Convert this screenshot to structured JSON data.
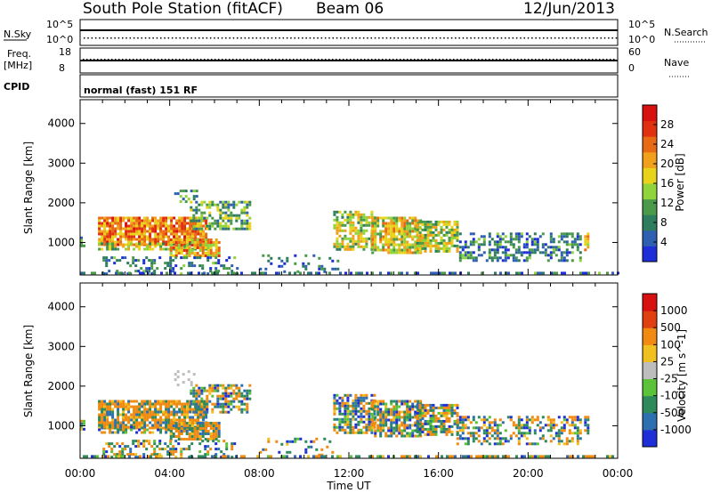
{
  "header": {
    "title": "South Pole Station (fitACF)",
    "beam": "Beam 06",
    "date": "12/Jun/2013"
  },
  "panels": {
    "nsky_label": "N.Sky",
    "nsearch_label": "N.Search",
    "nsky_ticks": [
      "10^5",
      "10^0"
    ],
    "nsearch_ticks": [
      "10^5",
      "10^0"
    ],
    "freq_label_1": "Freq.",
    "freq_label_2": "[MHz]",
    "freq_ticks": [
      "18",
      "8"
    ],
    "nave_label": "Nave",
    "nave_ticks": [
      "60",
      "0"
    ],
    "cpid_label": "CPID",
    "cpid_value": "normal (fast) 151 RF"
  },
  "chart_data": [
    {
      "type": "heatmap",
      "name": "power",
      "ylabel": "Slant Range [km]",
      "xlabel": "",
      "x_ticks": [
        "00:00",
        "04:00",
        "08:00",
        "12:00",
        "16:00",
        "20:00",
        "00:00"
      ],
      "y_ticks": [
        1000,
        2000,
        3000,
        4000
      ],
      "ylim": [
        180,
        4600
      ],
      "xlim_hours": [
        0,
        24
      ],
      "colorbar": {
        "label": "Power [dB]",
        "ticks": [
          "4",
          "8",
          "12",
          "16",
          "20",
          "24",
          "28"
        ],
        "range": [
          0,
          30
        ],
        "colors": [
          "#1f2fd8",
          "#2f5fb0",
          "#2e7d5e",
          "#4a9a4a",
          "#8fd43a",
          "#e8d21a",
          "#f0a01a",
          "#e86a14",
          "#e03010",
          "#d81010"
        ]
      },
      "regions": [
        {
          "t": [
            0.7,
            5.8
          ],
          "r": [
            800,
            1700
          ],
          "level": 22
        },
        {
          "t": [
            5.0,
            8.0
          ],
          "r": [
            1400,
            2000
          ],
          "level": 10
        },
        {
          "t": [
            11.3,
            16.8
          ],
          "r": [
            700,
            1700
          ],
          "level": 14
        },
        {
          "t": [
            16.8,
            22.3
          ],
          "r": [
            500,
            1300
          ],
          "level": 6
        }
      ]
    },
    {
      "type": "heatmap",
      "name": "velocity",
      "ylabel": "Slant Range [km]",
      "xlabel": "Time UT",
      "x_ticks": [
        "00:00",
        "04:00",
        "08:00",
        "12:00",
        "16:00",
        "20:00",
        "00:00"
      ],
      "y_ticks": [
        1000,
        2000,
        3000,
        4000
      ],
      "ylim": [
        180,
        4600
      ],
      "xlim_hours": [
        0,
        24
      ],
      "colorbar": {
        "label": "Velocity [m s^-1]",
        "ticks": [
          "1000",
          "500",
          "100",
          "25",
          "-25",
          "-100",
          "-500",
          "-1000"
        ],
        "colors": [
          "#1f2fd8",
          "#2e6fb0",
          "#2e8a5a",
          "#5cc23a",
          "#bdbdbd",
          "#f0c020",
          "#f08a10",
          "#e04010",
          "#d81010"
        ]
      }
    }
  ]
}
